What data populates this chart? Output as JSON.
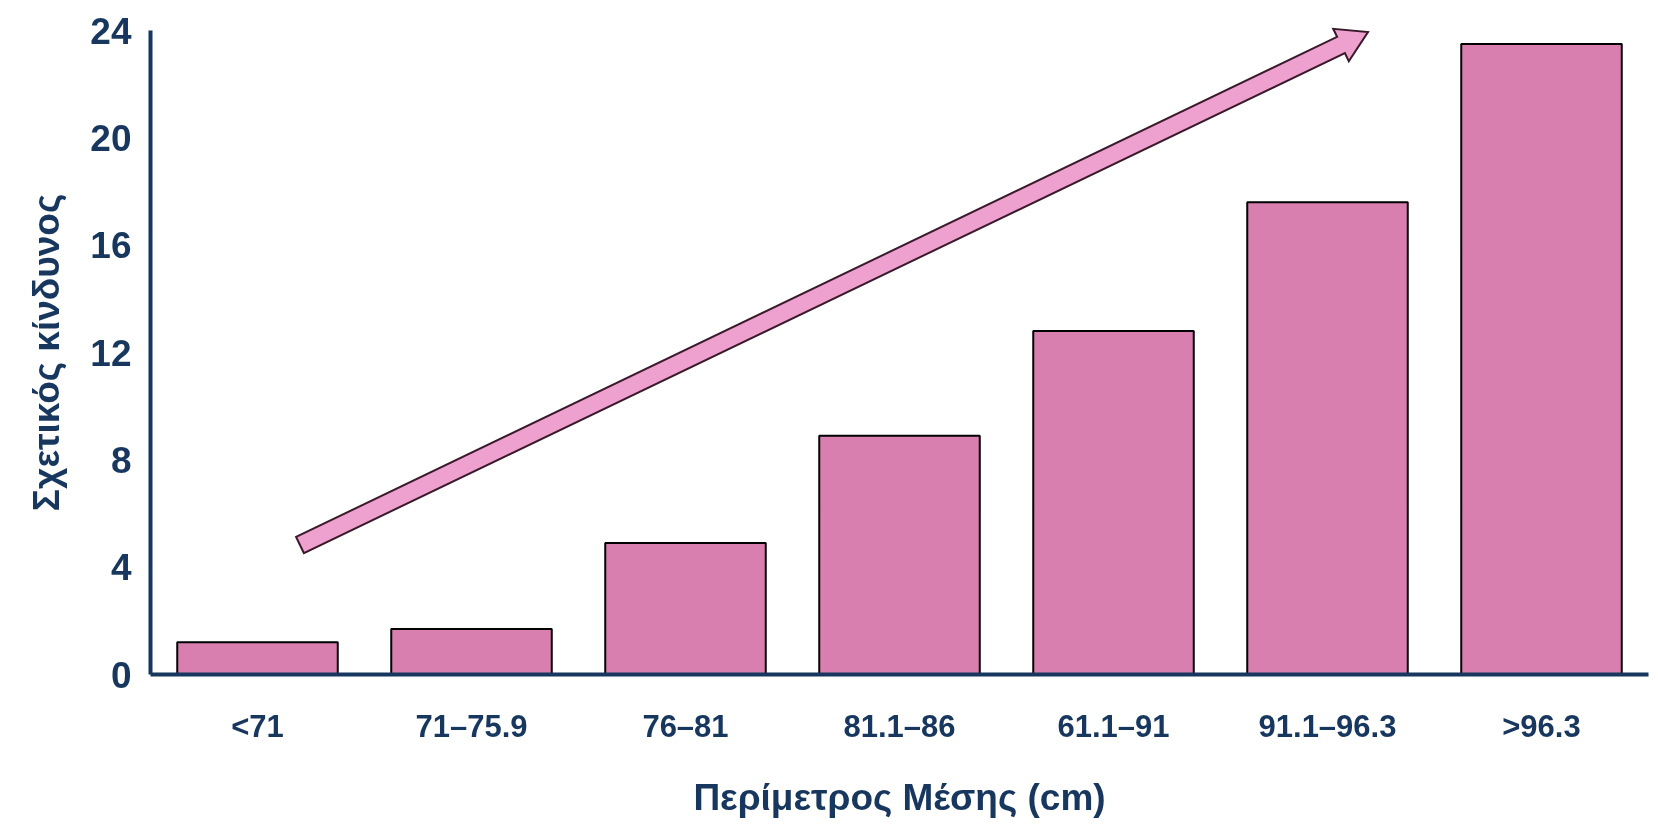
{
  "chart_data": {
    "type": "bar",
    "xlabel": "Περίμετρος Μέσης (cm)",
    "ylabel": "Σχετικός κίνδυνος",
    "categories": [
      "<71",
      "71–75.9",
      "76–81",
      "81.1–86",
      "61.1–91",
      "91.1–96.3",
      ">96.3"
    ],
    "values": [
      1.2,
      1.7,
      4.9,
      8.9,
      12.8,
      17.6,
      23.5
    ],
    "color": "#d97fb0",
    "ylim": [
      0,
      24
    ],
    "yticks": [
      0,
      4,
      8,
      12,
      16,
      20,
      24
    ],
    "grid": false
  }
}
